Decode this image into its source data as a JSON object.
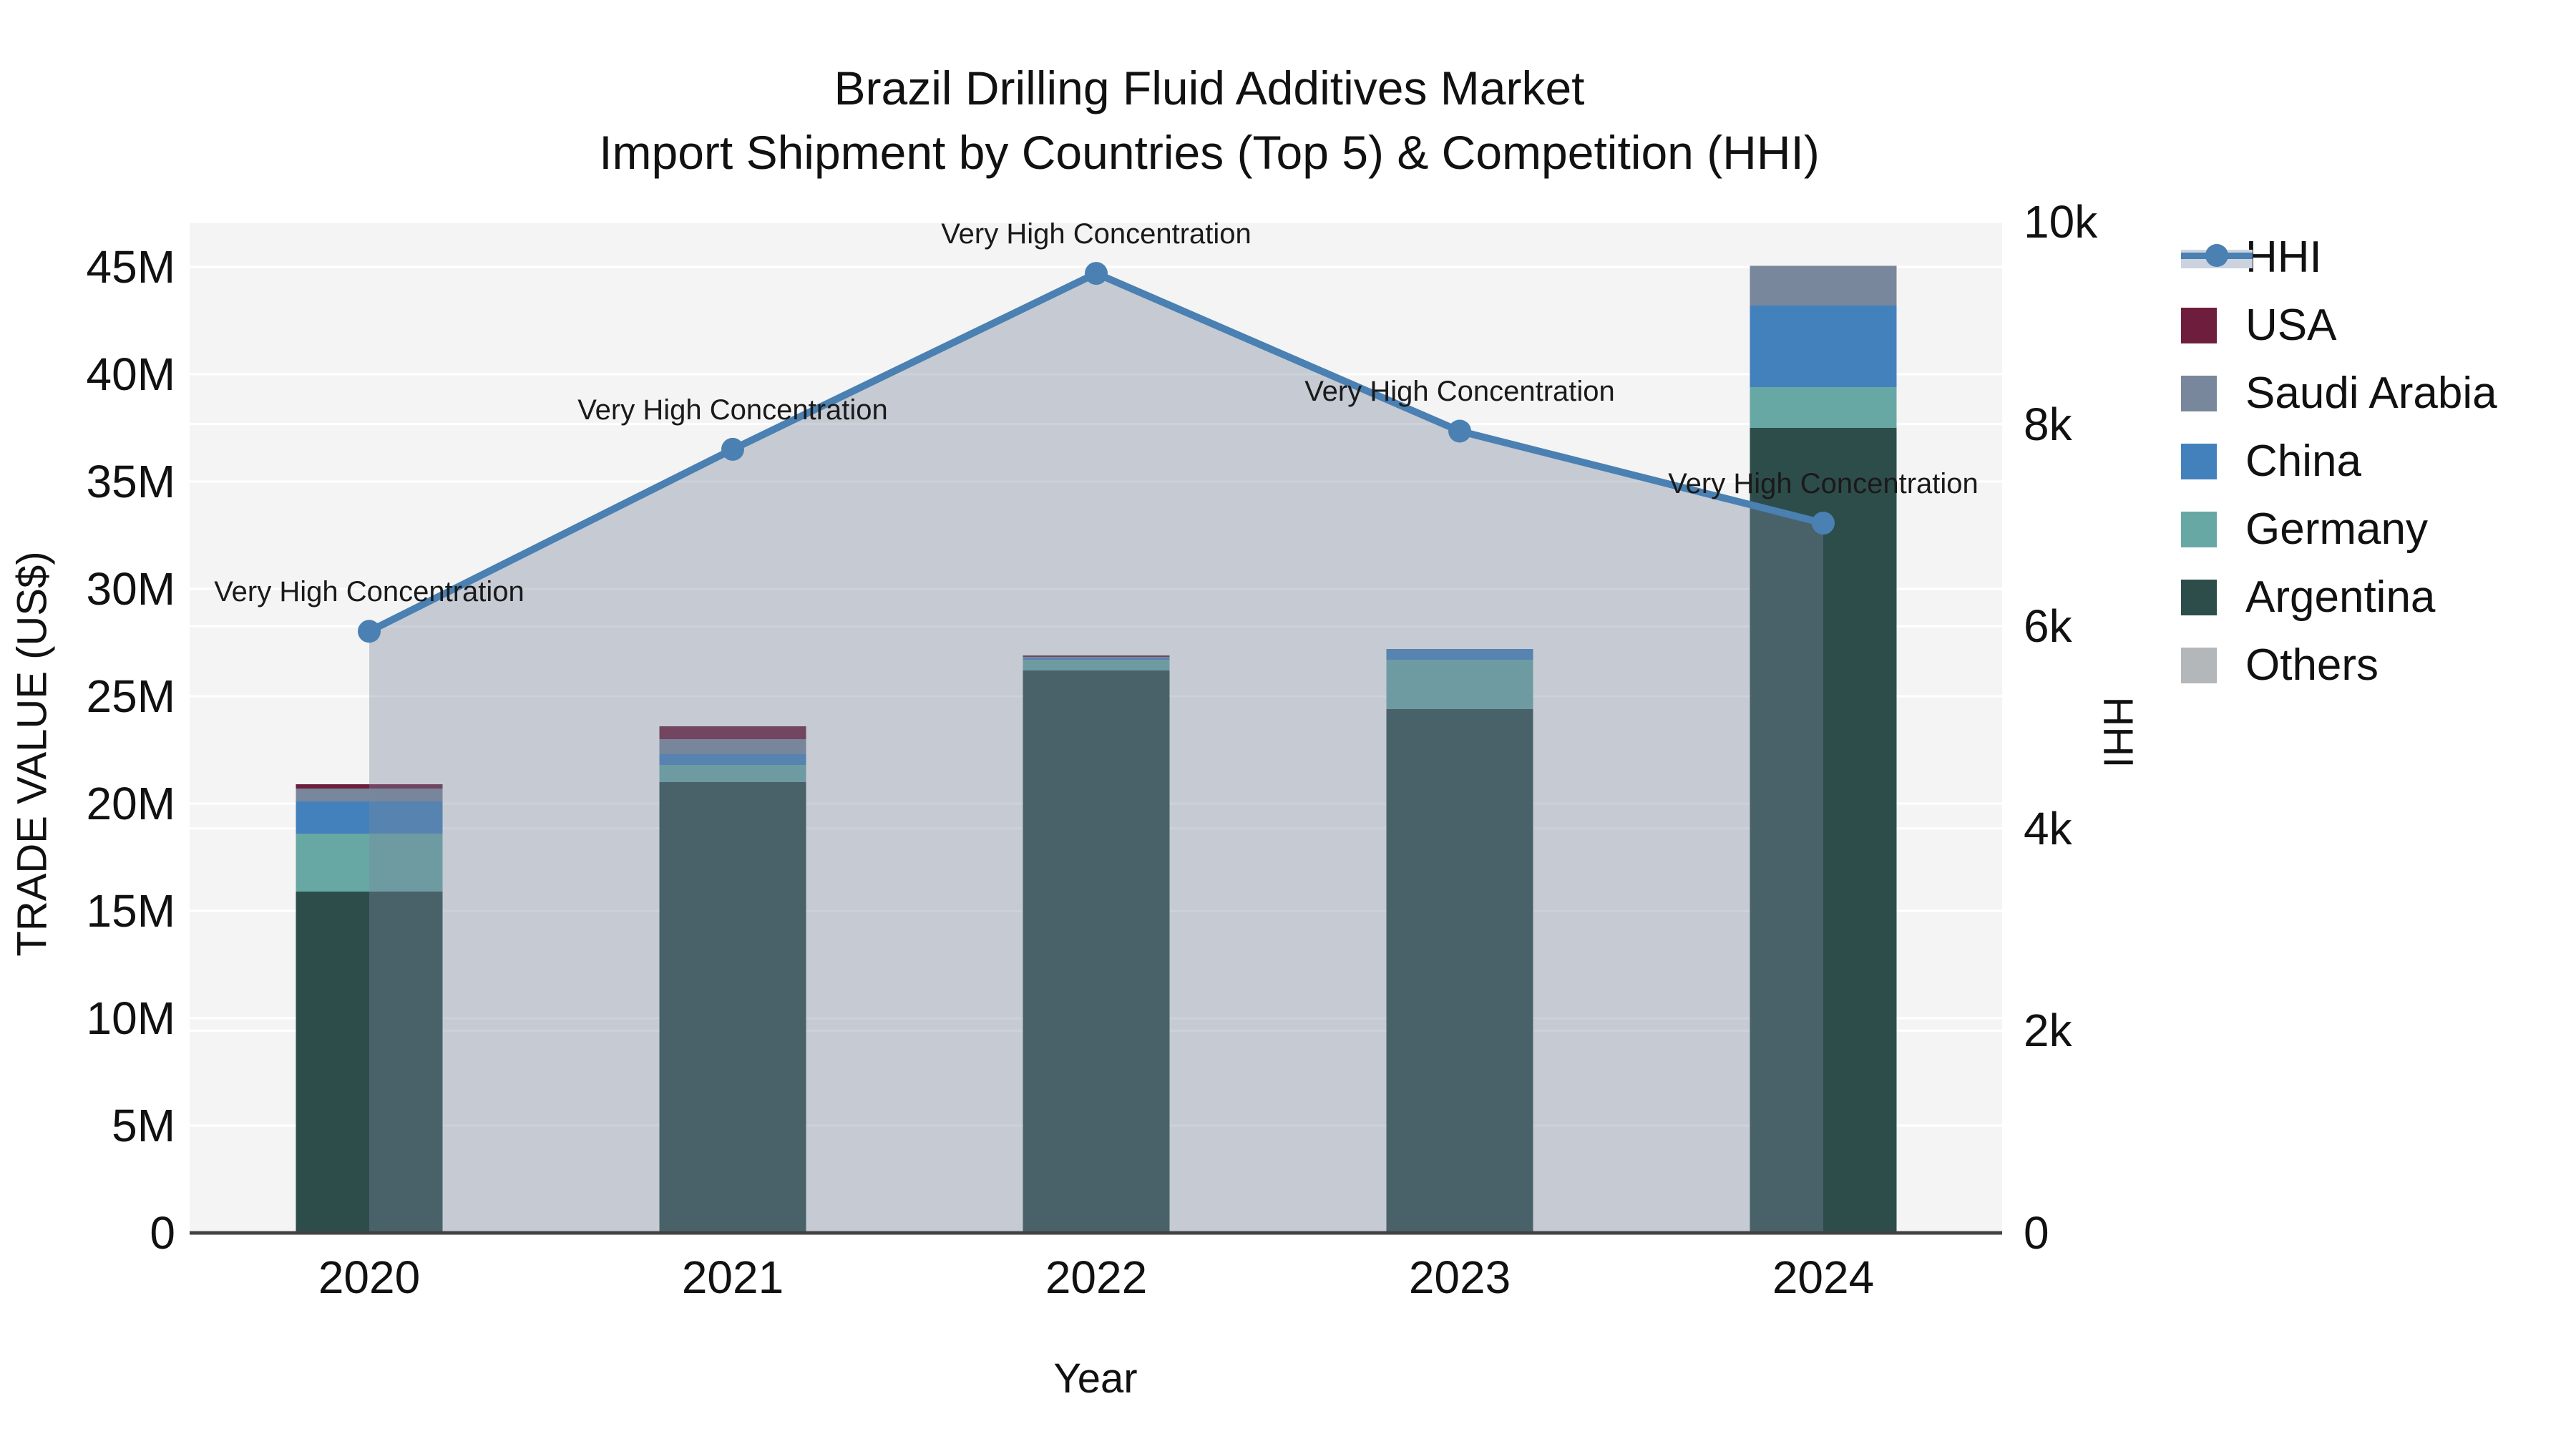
{
  "figure": {
    "title_line1": "Brazil Drilling Fluid Additives Market",
    "title_line2": "Import Shipment by Countries (Top 5) & Competition (HHI)",
    "background": "#ffffff",
    "plot_background": "#f4f4f4",
    "grid_color": "#ffffff",
    "spine_color": "#424242"
  },
  "axes": {
    "x": {
      "label": "Year",
      "tick_labels": [
        "2020",
        "2021",
        "2022",
        "2023",
        "2024"
      ]
    },
    "y_left": {
      "label": "TRADE VALUE (US$)",
      "tick_labels": [
        "0",
        "5M",
        "10M",
        "15M",
        "20M",
        "25M",
        "30M",
        "35M",
        "40M",
        "45M"
      ],
      "tick_values_m": [
        0,
        5,
        10,
        15,
        20,
        25,
        30,
        35,
        40,
        45
      ]
    },
    "y_right": {
      "label": "HHI",
      "tick_labels": [
        "0",
        "2k",
        "4k",
        "6k",
        "8k",
        "10k"
      ],
      "tick_values": [
        0,
        2000,
        4000,
        6000,
        8000,
        10000
      ]
    }
  },
  "legend": [
    {
      "name": "HHI",
      "type": "line",
      "color": "#4a80b2",
      "fill": "#ccd3de"
    },
    {
      "name": "USA",
      "type": "square",
      "color": "#6e1e3c"
    },
    {
      "name": "Saudi Arabia",
      "type": "square",
      "color": "#78879b"
    },
    {
      "name": "China",
      "type": "square",
      "color": "#4381bd"
    },
    {
      "name": "Germany",
      "type": "square",
      "color": "#68a8a4"
    },
    {
      "name": "Argentina",
      "type": "square",
      "color": "#2d4d4b"
    },
    {
      "name": "Others",
      "type": "square",
      "color": "#b3b7ba"
    }
  ],
  "chart_data": {
    "type": "bar",
    "subtype": "stacked-bars-with-line-area",
    "title": "Brazil Drilling Fluid Additives Market — Import Shipment by Countries (Top 5) & Competition (HHI)",
    "xlabel": "Year",
    "ylabel_left": "TRADE VALUE (US$)",
    "ylabel_right": "HHI",
    "categories": [
      "2020",
      "2021",
      "2022",
      "2023",
      "2024"
    ],
    "bar_value_unit": "million US$",
    "stack_order_bottom_to_top": [
      "Argentina",
      "Germany",
      "China",
      "Saudi Arabia",
      "USA",
      "Others"
    ],
    "series": [
      {
        "name": "Argentina",
        "color": "#2d4d4b",
        "values": [
          15.9,
          21.0,
          26.2,
          24.4,
          37.5
        ]
      },
      {
        "name": "Germany",
        "color": "#68a8a4",
        "values": [
          2.7,
          0.8,
          0.5,
          2.3,
          1.9
        ]
      },
      {
        "name": "China",
        "color": "#4381bd",
        "values": [
          1.5,
          0.5,
          0.1,
          0.5,
          3.8
        ]
      },
      {
        "name": "Saudi Arabia",
        "color": "#78879b",
        "values": [
          0.6,
          0.7,
          0.05,
          0.0,
          1.85
        ]
      },
      {
        "name": "USA",
        "color": "#6e1e3c",
        "values": [
          0.2,
          0.6,
          0.05,
          0.0,
          0.0
        ]
      },
      {
        "name": "Others",
        "color": "#b3b7ba",
        "values": [
          0.0,
          0.0,
          0.0,
          0.0,
          0.0
        ]
      }
    ],
    "bar_totals_m": [
      20.9,
      23.6,
      26.9,
      27.2,
      45.05
    ],
    "line_series": {
      "name": "HHI",
      "color": "#4a80b2",
      "area_fill": "rgba(120,134,158,0.38)",
      "values": [
        5950,
        7750,
        9490,
        7930,
        7020
      ],
      "axis": "right"
    },
    "annotations": [
      {
        "x": "2020",
        "text": "Very High Concentration"
      },
      {
        "x": "2021",
        "text": "Very High Concentration"
      },
      {
        "x": "2022",
        "text": "Very High Concentration"
      },
      {
        "x": "2023",
        "text": "Very High Concentration"
      },
      {
        "x": "2024",
        "text": "Very High Concentration"
      }
    ],
    "ylim_left_m": [
      0,
      47.1
    ],
    "ylim_right": [
      0,
      10000
    ],
    "grid": true,
    "legend_position": "right-outside"
  }
}
